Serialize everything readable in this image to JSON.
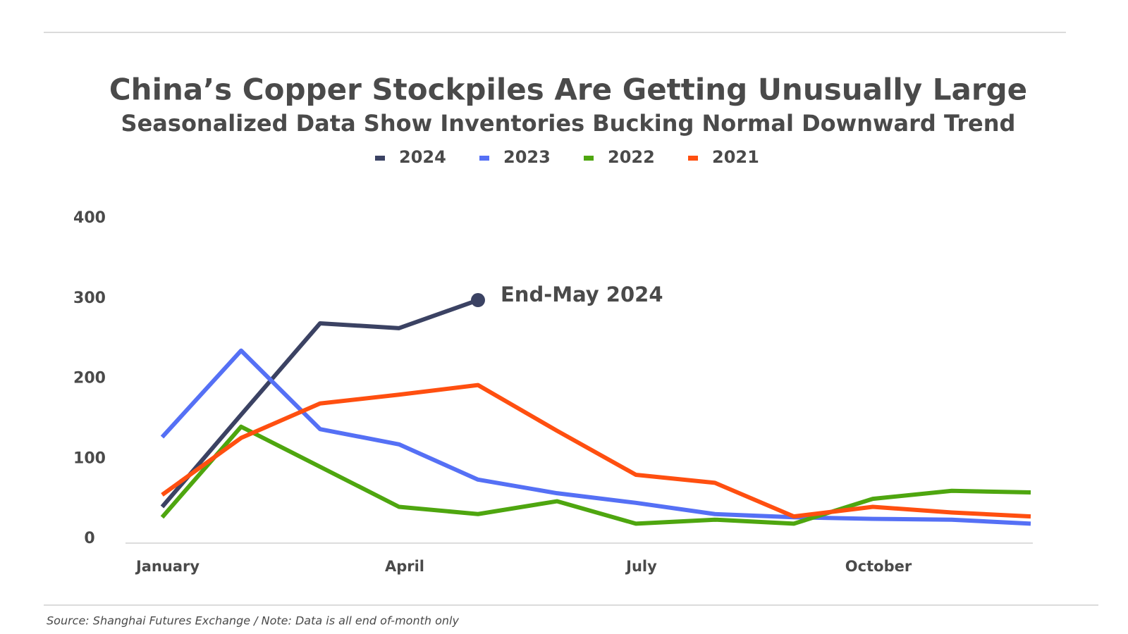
{
  "chart_data": {
    "type": "line",
    "title": "China’s Copper Stockpiles Are Getting Unusually Large",
    "subtitle": "Seasonalized Data Show Inventories Bucking Normal Downward Trend",
    "categories": [
      "January",
      null,
      null,
      "April",
      null,
      null,
      "July",
      null,
      null,
      "October",
      null,
      null
    ],
    "series": [
      {
        "name": "2024",
        "color": "#3b4263",
        "values": [
          40,
          155,
          269,
          263,
          298,
          null,
          null,
          null,
          null,
          null,
          null,
          null
        ]
      },
      {
        "name": "2023",
        "color": "#5570f5",
        "values": [
          127,
          235,
          137,
          118,
          74,
          57,
          45,
          31,
          27,
          25,
          24,
          19
        ]
      },
      {
        "name": "2022",
        "color": "#4ea60f",
        "values": [
          27,
          140,
          90,
          40,
          31,
          47,
          19,
          24,
          19,
          50,
          60,
          58
        ]
      },
      {
        "name": "2021",
        "color": "#ff4f10",
        "values": [
          55,
          126,
          169,
          180,
          192,
          135,
          80,
          70,
          28,
          40,
          33,
          28
        ]
      }
    ],
    "ylim": [
      0,
      400
    ],
    "yticks": [
      0,
      100,
      200,
      300,
      400
    ],
    "grid": false,
    "annotation": "End-May 2024",
    "source": "Source: Shanghai Futures Exchange /  Note: Data is all end of-month only"
  }
}
